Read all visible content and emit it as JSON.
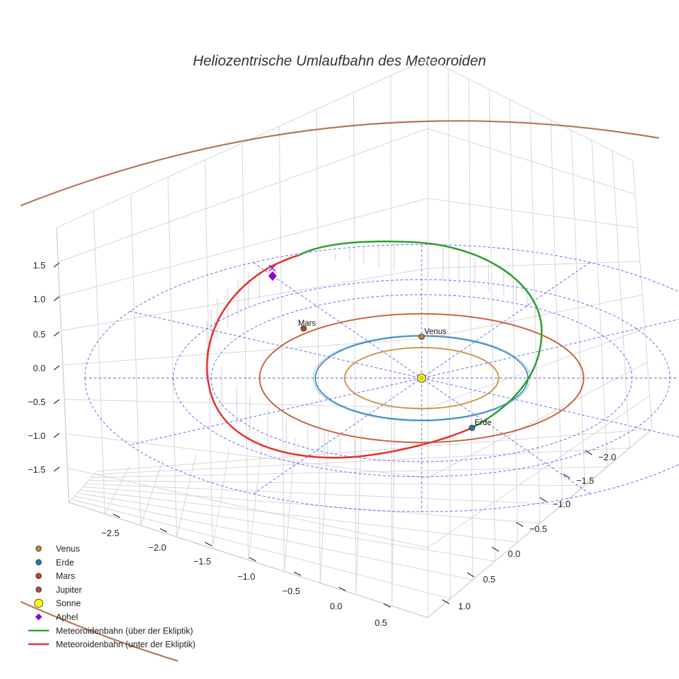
{
  "chart_data": {
    "type": "scatter3d",
    "title": "Heliozentrische Umlaufbahn des Meteoroiden",
    "x_axis": {
      "ticks": [
        "−2.5",
        "−2.0",
        "−1.5",
        "−1.0",
        "−0.5",
        "0.0",
        "0.5"
      ]
    },
    "y_axis": {
      "ticks": [
        "−2.0",
        "−1.5",
        "−1.0",
        "−0.5",
        "0.0",
        "0.5",
        "1.0"
      ]
    },
    "z_axis": {
      "ticks": [
        "1.5",
        "1.0",
        "0.5",
        "0.0",
        "−0.5",
        "−1.0",
        "−1.5"
      ]
    },
    "bodies": [
      {
        "name": "Venus",
        "label": "Venus",
        "orbit_radius_au": 0.72,
        "color": "#c8862a"
      },
      {
        "name": "Erde",
        "label": "Erde",
        "orbit_radius_au": 1.0,
        "color": "#1f77b4"
      },
      {
        "name": "Mars",
        "label": "Mars",
        "orbit_radius_au": 1.52,
        "color": "#c0461a"
      },
      {
        "name": "Jupiter",
        "label": "",
        "orbit_radius_au": 5.2,
        "color": "#a0522d"
      }
    ],
    "sun": {
      "name": "Sonne",
      "color": "#ffff00"
    },
    "aphel": {
      "name": "Aphel",
      "color": "#9400d3"
    },
    "meteoroid_orbit": [
      {
        "name": "Meteoroidenbahn (über der Ekliptik)",
        "color": "#2ca02c"
      },
      {
        "name": "Meteoroidenbahn (unter der Ekliptik)",
        "color": "#e8302a"
      }
    ],
    "legend": [
      {
        "label": "Venus",
        "marker": "circle",
        "color": "#c8862a"
      },
      {
        "label": "Erde",
        "marker": "circle",
        "color": "#1f77b4"
      },
      {
        "label": "Mars",
        "marker": "circle",
        "color": "#c0461a"
      },
      {
        "label": "Jupiter",
        "marker": "circle",
        "color": "#a0522d"
      },
      {
        "label": "Sonne",
        "marker": "circle-large",
        "color": "#ffff00"
      },
      {
        "label": "Aphel",
        "marker": "diamond",
        "color": "#9400d3"
      },
      {
        "label": "Meteoroidenbahn (über der Ekliptik)",
        "marker": "line",
        "color": "#2ca02c"
      },
      {
        "label": "Meteoroidenbahn (unter der Ekliptik)",
        "marker": "line",
        "color": "#e8302a"
      }
    ]
  }
}
